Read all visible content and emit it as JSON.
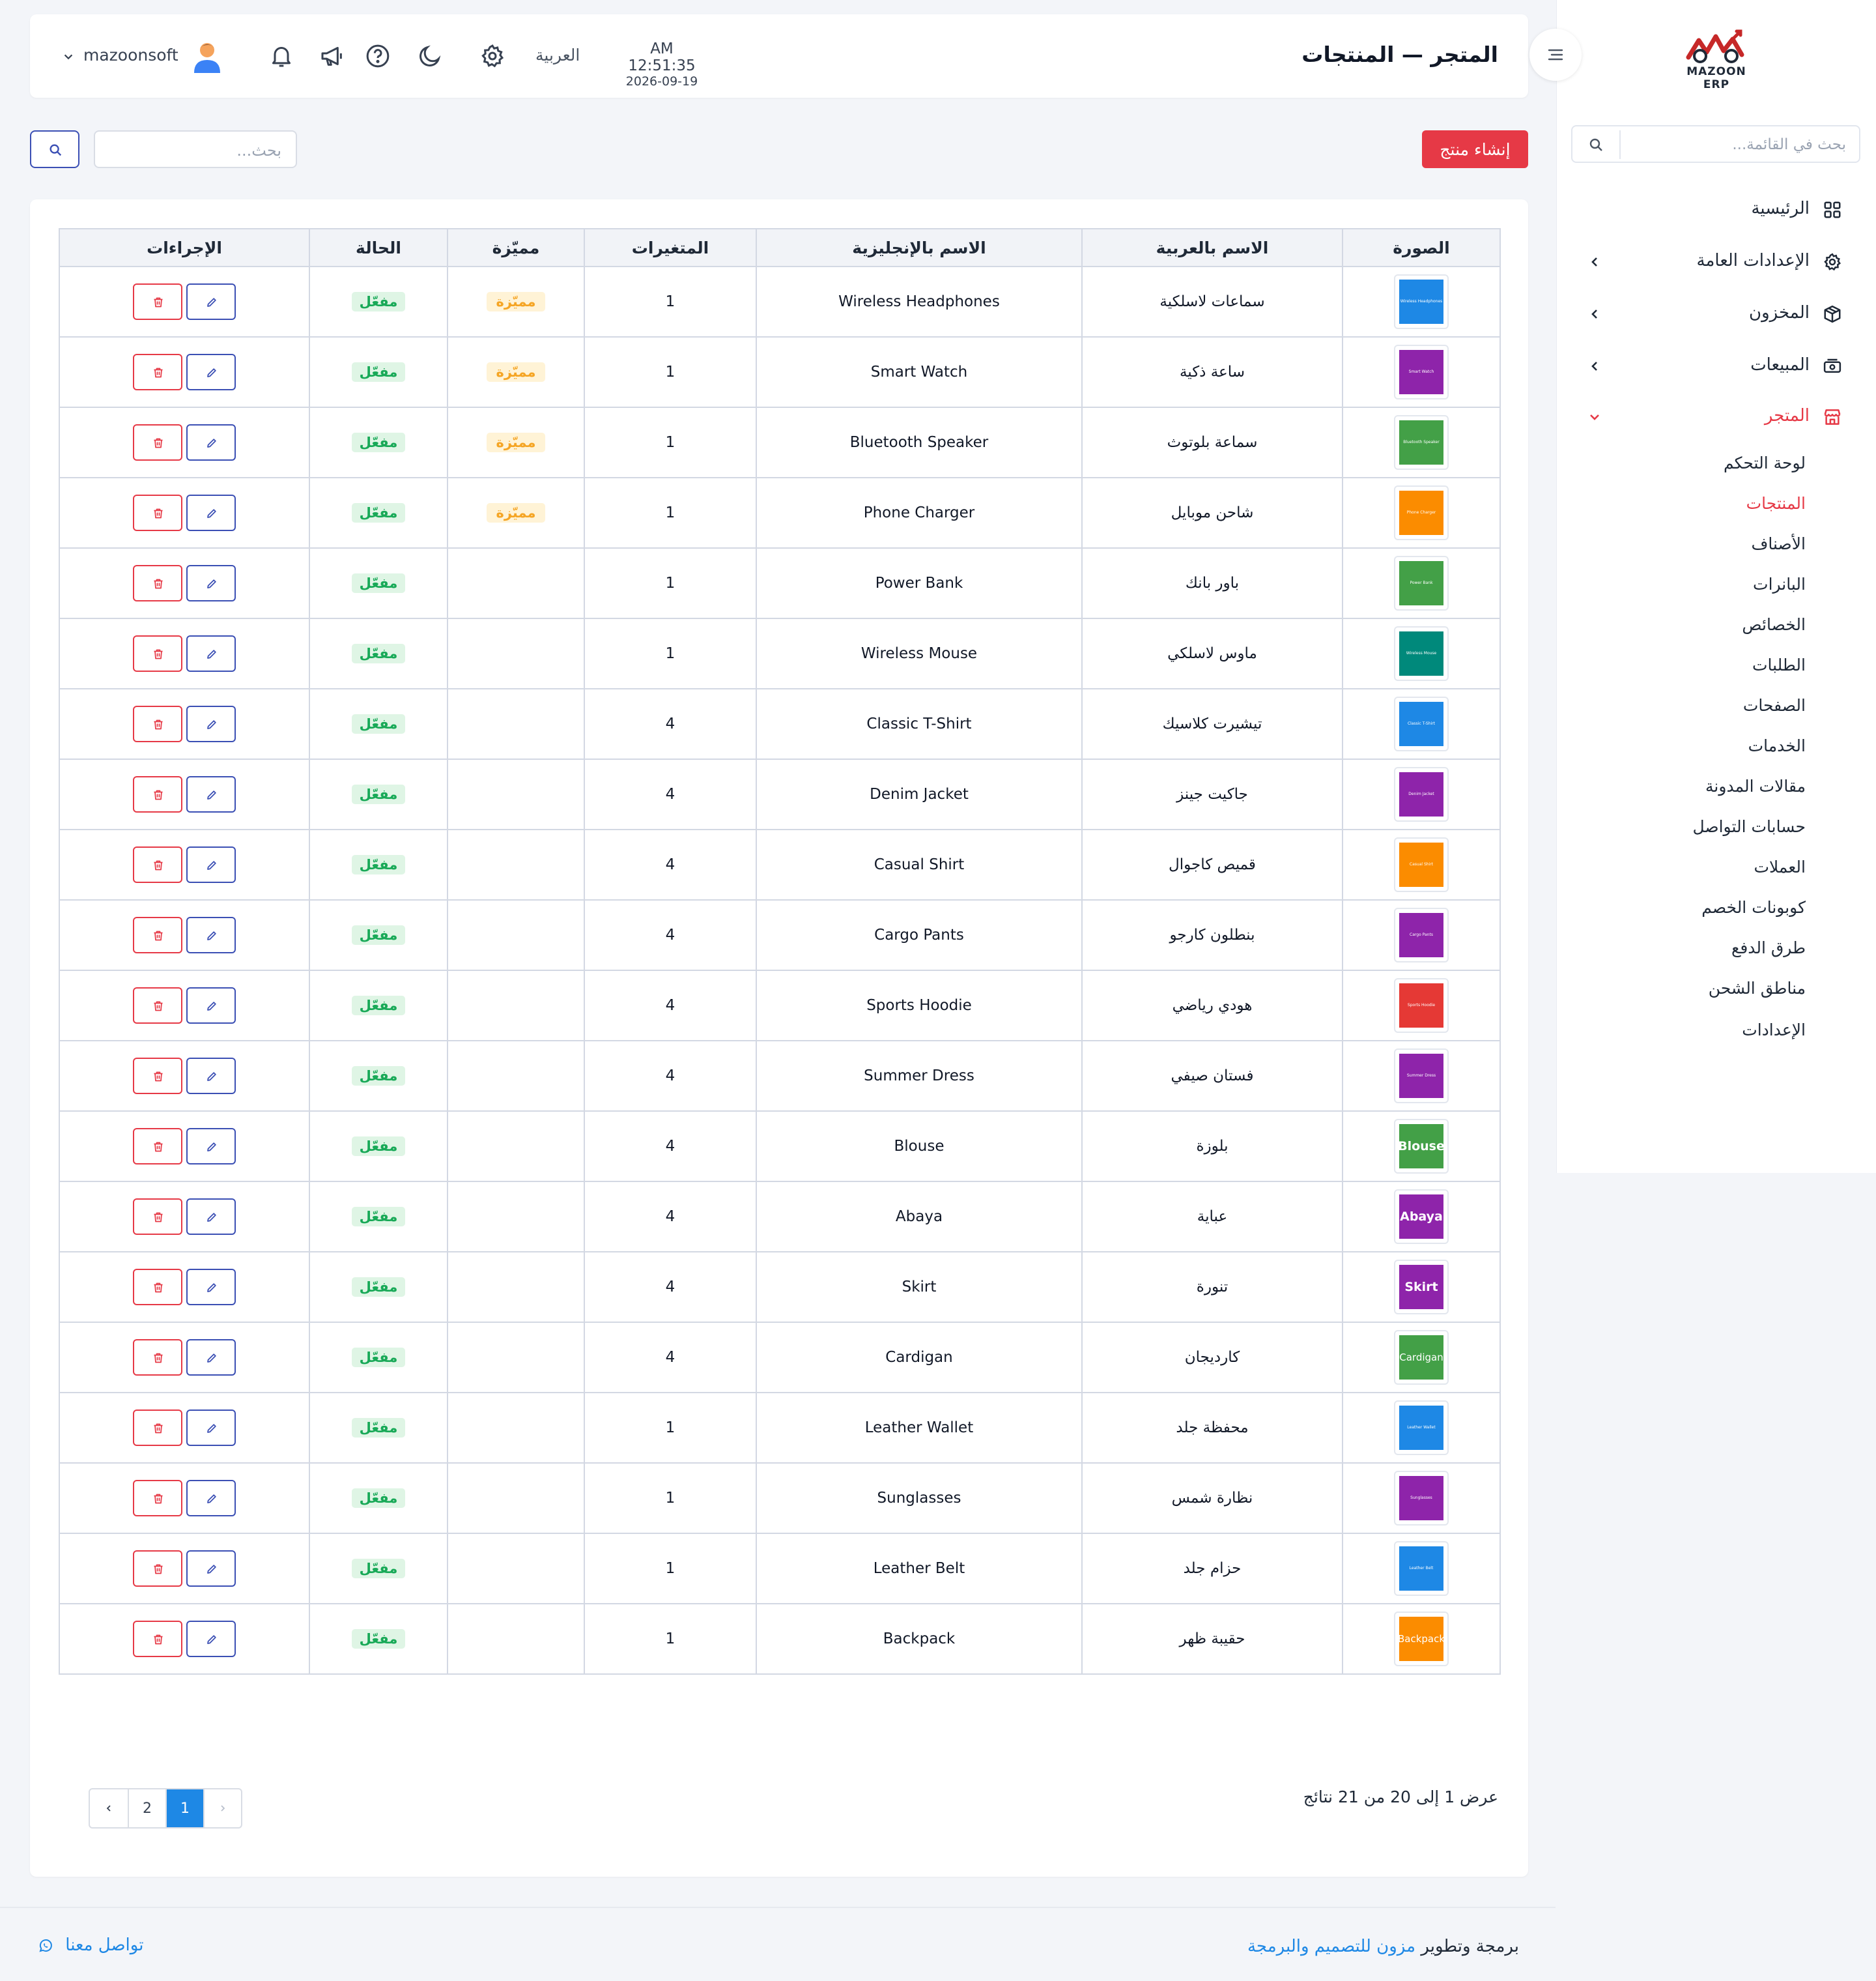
{
  "app": {
    "logo_text": "MAZOON ERP",
    "logo_caption": "ERP"
  },
  "header": {
    "title": "المتجر — المنتجات",
    "time": "AM 12:51:35",
    "date": "2026-09-19",
    "language": "العربية",
    "username": "mazoonsoft",
    "icons": [
      "settings-icon",
      "moon-icon",
      "help-icon",
      "megaphone-icon",
      "bell-icon"
    ]
  },
  "sidebar": {
    "search_placeholder": "بحث في القائمة...",
    "nav": [
      {
        "label": "الرئيسية",
        "icon": "dashboard-grid-icon"
      },
      {
        "label": "الإعدادات العامة",
        "icon": "gear-icon"
      },
      {
        "label": "المخزون",
        "icon": "box-icon"
      },
      {
        "label": "المبيعات",
        "icon": "cash-register-icon"
      },
      {
        "label": "المتجر",
        "icon": "store-icon"
      }
    ],
    "store_sub": [
      "لوحة التحكم",
      "المنتجات",
      "الأصناف",
      "البانرات",
      "الخصائص",
      "الطلبات",
      "الصفحات",
      "الخدمات",
      "مقالات المدونة",
      "حسابات التواصل",
      "العملات",
      "كوبونات الخصم",
      "طرق الدفع",
      "مناطق الشحن",
      "الإعدادات"
    ],
    "active_sub": "المنتجات"
  },
  "toolbar": {
    "create_label": "إنشاء منتج",
    "search_placeholder": "بحث..."
  },
  "table": {
    "columns": [
      "الصورة",
      "الاسم بالعربية",
      "الاسم بالإنجليزية",
      "المتغيرات",
      "مميّزة",
      "الحالة",
      "الإجراءات"
    ],
    "featured_label": "مميّزة",
    "status_label": "مفعّل",
    "rows": [
      {
        "ar": "سماعات لاسلكية",
        "en": "Wireless Headphones",
        "variants": "1",
        "featured": true,
        "color": "#1e88e5",
        "thumb": "Wireless Headphones"
      },
      {
        "ar": "ساعة ذكية",
        "en": "Smart Watch",
        "variants": "1",
        "featured": true,
        "color": "#8e24aa",
        "thumb": "Smart Watch"
      },
      {
        "ar": "سماعة بلوتوث",
        "en": "Bluetooth Speaker",
        "variants": "1",
        "featured": true,
        "color": "#43a047",
        "thumb": "Bluetooth Speaker"
      },
      {
        "ar": "شاحن موبايل",
        "en": "Phone Charger",
        "variants": "1",
        "featured": true,
        "color": "#fb8c00",
        "thumb": "Phone Charger"
      },
      {
        "ar": "باور بانك",
        "en": "Power Bank",
        "variants": "1",
        "featured": false,
        "color": "#43a047",
        "thumb": "Power Bank"
      },
      {
        "ar": "ماوس لاسلكي",
        "en": "Wireless Mouse",
        "variants": "1",
        "featured": false,
        "color": "#00897b",
        "thumb": "Wireless Mouse"
      },
      {
        "ar": "تيشيرت كلاسيك",
        "en": "Classic T-Shirt",
        "variants": "4",
        "featured": false,
        "color": "#1e88e5",
        "thumb": "Classic T-Shirt"
      },
      {
        "ar": "جاكيت جينز",
        "en": "Denim Jacket",
        "variants": "4",
        "featured": false,
        "color": "#8e24aa",
        "thumb": "Denim Jacket"
      },
      {
        "ar": "قميص كاجوال",
        "en": "Casual Shirt",
        "variants": "4",
        "featured": false,
        "color": "#fb8c00",
        "thumb": "Casual Shirt"
      },
      {
        "ar": "بنطلون كارجو",
        "en": "Cargo Pants",
        "variants": "4",
        "featured": false,
        "color": "#8e24aa",
        "thumb": "Cargo Pants"
      },
      {
        "ar": "هودي رياضي",
        "en": "Sports Hoodie",
        "variants": "4",
        "featured": false,
        "color": "#e53935",
        "thumb": "Sports Hoodie"
      },
      {
        "ar": "فستان صيفي",
        "en": "Summer Dress",
        "variants": "4",
        "featured": false,
        "color": "#8e24aa",
        "thumb": "Summer Dress"
      },
      {
        "ar": "بلوزة",
        "en": "Blouse",
        "variants": "4",
        "featured": false,
        "color": "#43a047",
        "thumb": "Blouse"
      },
      {
        "ar": "عباية",
        "en": "Abaya",
        "variants": "4",
        "featured": false,
        "color": "#8e24aa",
        "thumb": "Abaya"
      },
      {
        "ar": "تنورة",
        "en": "Skirt",
        "variants": "4",
        "featured": false,
        "color": "#8e24aa",
        "thumb": "Skirt"
      },
      {
        "ar": "كارديجان",
        "en": "Cardigan",
        "variants": "4",
        "featured": false,
        "color": "#43a047",
        "thumb": "Cardigan"
      },
      {
        "ar": "محفظة جلد",
        "en": "Leather Wallet",
        "variants": "1",
        "featured": false,
        "color": "#1e88e5",
        "thumb": "Leather Wallet"
      },
      {
        "ar": "نظارة شمس",
        "en": "Sunglasses",
        "variants": "1",
        "featured": false,
        "color": "#8e24aa",
        "thumb": "Sunglasses"
      },
      {
        "ar": "حزام جلد",
        "en": "Leather Belt",
        "variants": "1",
        "featured": false,
        "color": "#1e88e5",
        "thumb": "Leather Belt"
      },
      {
        "ar": "حقيبة ظهر",
        "en": "Backpack",
        "variants": "1",
        "featured": false,
        "color": "#fb8c00",
        "thumb": "Backpack"
      }
    ]
  },
  "pagination": {
    "info": "عرض 1 إلى 20 من 21 نتائج",
    "pages": [
      "1",
      "2"
    ],
    "current": "1"
  },
  "footer": {
    "credit_prefix": "برمجة وتطوير",
    "credit_link": "مزون للتصميم والبرمجة",
    "contact": "تواصل معنا"
  },
  "colors": {
    "accent_red": "#e63946",
    "primary_blue": "#3b4fb4",
    "link_blue": "#1e88e5",
    "status_green": "#18a957",
    "featured_amber": "#f5a524"
  }
}
